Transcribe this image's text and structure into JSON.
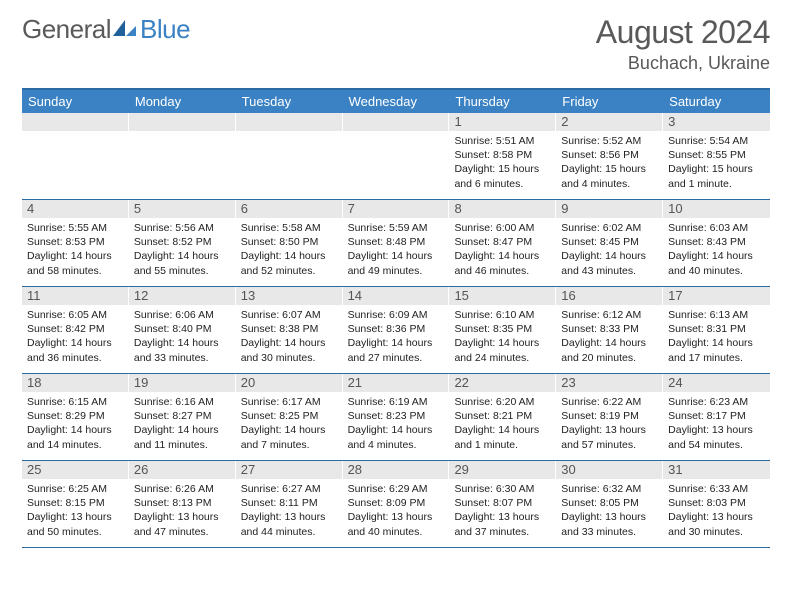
{
  "logo": {
    "text1": "General",
    "text2": "Blue"
  },
  "title": "August 2024",
  "location": "Buchach, Ukraine",
  "colors": {
    "header_bg": "#3b82c4",
    "border": "#2b6aa3",
    "daynum_bg": "#e8e8e8",
    "text_muted": "#595959"
  },
  "weekdays": [
    "Sunday",
    "Monday",
    "Tuesday",
    "Wednesday",
    "Thursday",
    "Friday",
    "Saturday"
  ],
  "weeks": [
    [
      {
        "n": "",
        "sunrise": "",
        "sunset": "",
        "daylight": ""
      },
      {
        "n": "",
        "sunrise": "",
        "sunset": "",
        "daylight": ""
      },
      {
        "n": "",
        "sunrise": "",
        "sunset": "",
        "daylight": ""
      },
      {
        "n": "",
        "sunrise": "",
        "sunset": "",
        "daylight": ""
      },
      {
        "n": "1",
        "sunrise": "Sunrise: 5:51 AM",
        "sunset": "Sunset: 8:58 PM",
        "daylight": "Daylight: 15 hours and 6 minutes."
      },
      {
        "n": "2",
        "sunrise": "Sunrise: 5:52 AM",
        "sunset": "Sunset: 8:56 PM",
        "daylight": "Daylight: 15 hours and 4 minutes."
      },
      {
        "n": "3",
        "sunrise": "Sunrise: 5:54 AM",
        "sunset": "Sunset: 8:55 PM",
        "daylight": "Daylight: 15 hours and 1 minute."
      }
    ],
    [
      {
        "n": "4",
        "sunrise": "Sunrise: 5:55 AM",
        "sunset": "Sunset: 8:53 PM",
        "daylight": "Daylight: 14 hours and 58 minutes."
      },
      {
        "n": "5",
        "sunrise": "Sunrise: 5:56 AM",
        "sunset": "Sunset: 8:52 PM",
        "daylight": "Daylight: 14 hours and 55 minutes."
      },
      {
        "n": "6",
        "sunrise": "Sunrise: 5:58 AM",
        "sunset": "Sunset: 8:50 PM",
        "daylight": "Daylight: 14 hours and 52 minutes."
      },
      {
        "n": "7",
        "sunrise": "Sunrise: 5:59 AM",
        "sunset": "Sunset: 8:48 PM",
        "daylight": "Daylight: 14 hours and 49 minutes."
      },
      {
        "n": "8",
        "sunrise": "Sunrise: 6:00 AM",
        "sunset": "Sunset: 8:47 PM",
        "daylight": "Daylight: 14 hours and 46 minutes."
      },
      {
        "n": "9",
        "sunrise": "Sunrise: 6:02 AM",
        "sunset": "Sunset: 8:45 PM",
        "daylight": "Daylight: 14 hours and 43 minutes."
      },
      {
        "n": "10",
        "sunrise": "Sunrise: 6:03 AM",
        "sunset": "Sunset: 8:43 PM",
        "daylight": "Daylight: 14 hours and 40 minutes."
      }
    ],
    [
      {
        "n": "11",
        "sunrise": "Sunrise: 6:05 AM",
        "sunset": "Sunset: 8:42 PM",
        "daylight": "Daylight: 14 hours and 36 minutes."
      },
      {
        "n": "12",
        "sunrise": "Sunrise: 6:06 AM",
        "sunset": "Sunset: 8:40 PM",
        "daylight": "Daylight: 14 hours and 33 minutes."
      },
      {
        "n": "13",
        "sunrise": "Sunrise: 6:07 AM",
        "sunset": "Sunset: 8:38 PM",
        "daylight": "Daylight: 14 hours and 30 minutes."
      },
      {
        "n": "14",
        "sunrise": "Sunrise: 6:09 AM",
        "sunset": "Sunset: 8:36 PM",
        "daylight": "Daylight: 14 hours and 27 minutes."
      },
      {
        "n": "15",
        "sunrise": "Sunrise: 6:10 AM",
        "sunset": "Sunset: 8:35 PM",
        "daylight": "Daylight: 14 hours and 24 minutes."
      },
      {
        "n": "16",
        "sunrise": "Sunrise: 6:12 AM",
        "sunset": "Sunset: 8:33 PM",
        "daylight": "Daylight: 14 hours and 20 minutes."
      },
      {
        "n": "17",
        "sunrise": "Sunrise: 6:13 AM",
        "sunset": "Sunset: 8:31 PM",
        "daylight": "Daylight: 14 hours and 17 minutes."
      }
    ],
    [
      {
        "n": "18",
        "sunrise": "Sunrise: 6:15 AM",
        "sunset": "Sunset: 8:29 PM",
        "daylight": "Daylight: 14 hours and 14 minutes."
      },
      {
        "n": "19",
        "sunrise": "Sunrise: 6:16 AM",
        "sunset": "Sunset: 8:27 PM",
        "daylight": "Daylight: 14 hours and 11 minutes."
      },
      {
        "n": "20",
        "sunrise": "Sunrise: 6:17 AM",
        "sunset": "Sunset: 8:25 PM",
        "daylight": "Daylight: 14 hours and 7 minutes."
      },
      {
        "n": "21",
        "sunrise": "Sunrise: 6:19 AM",
        "sunset": "Sunset: 8:23 PM",
        "daylight": "Daylight: 14 hours and 4 minutes."
      },
      {
        "n": "22",
        "sunrise": "Sunrise: 6:20 AM",
        "sunset": "Sunset: 8:21 PM",
        "daylight": "Daylight: 14 hours and 1 minute."
      },
      {
        "n": "23",
        "sunrise": "Sunrise: 6:22 AM",
        "sunset": "Sunset: 8:19 PM",
        "daylight": "Daylight: 13 hours and 57 minutes."
      },
      {
        "n": "24",
        "sunrise": "Sunrise: 6:23 AM",
        "sunset": "Sunset: 8:17 PM",
        "daylight": "Daylight: 13 hours and 54 minutes."
      }
    ],
    [
      {
        "n": "25",
        "sunrise": "Sunrise: 6:25 AM",
        "sunset": "Sunset: 8:15 PM",
        "daylight": "Daylight: 13 hours and 50 minutes."
      },
      {
        "n": "26",
        "sunrise": "Sunrise: 6:26 AM",
        "sunset": "Sunset: 8:13 PM",
        "daylight": "Daylight: 13 hours and 47 minutes."
      },
      {
        "n": "27",
        "sunrise": "Sunrise: 6:27 AM",
        "sunset": "Sunset: 8:11 PM",
        "daylight": "Daylight: 13 hours and 44 minutes."
      },
      {
        "n": "28",
        "sunrise": "Sunrise: 6:29 AM",
        "sunset": "Sunset: 8:09 PM",
        "daylight": "Daylight: 13 hours and 40 minutes."
      },
      {
        "n": "29",
        "sunrise": "Sunrise: 6:30 AM",
        "sunset": "Sunset: 8:07 PM",
        "daylight": "Daylight: 13 hours and 37 minutes."
      },
      {
        "n": "30",
        "sunrise": "Sunrise: 6:32 AM",
        "sunset": "Sunset: 8:05 PM",
        "daylight": "Daylight: 13 hours and 33 minutes."
      },
      {
        "n": "31",
        "sunrise": "Sunrise: 6:33 AM",
        "sunset": "Sunset: 8:03 PM",
        "daylight": "Daylight: 13 hours and 30 minutes."
      }
    ]
  ]
}
